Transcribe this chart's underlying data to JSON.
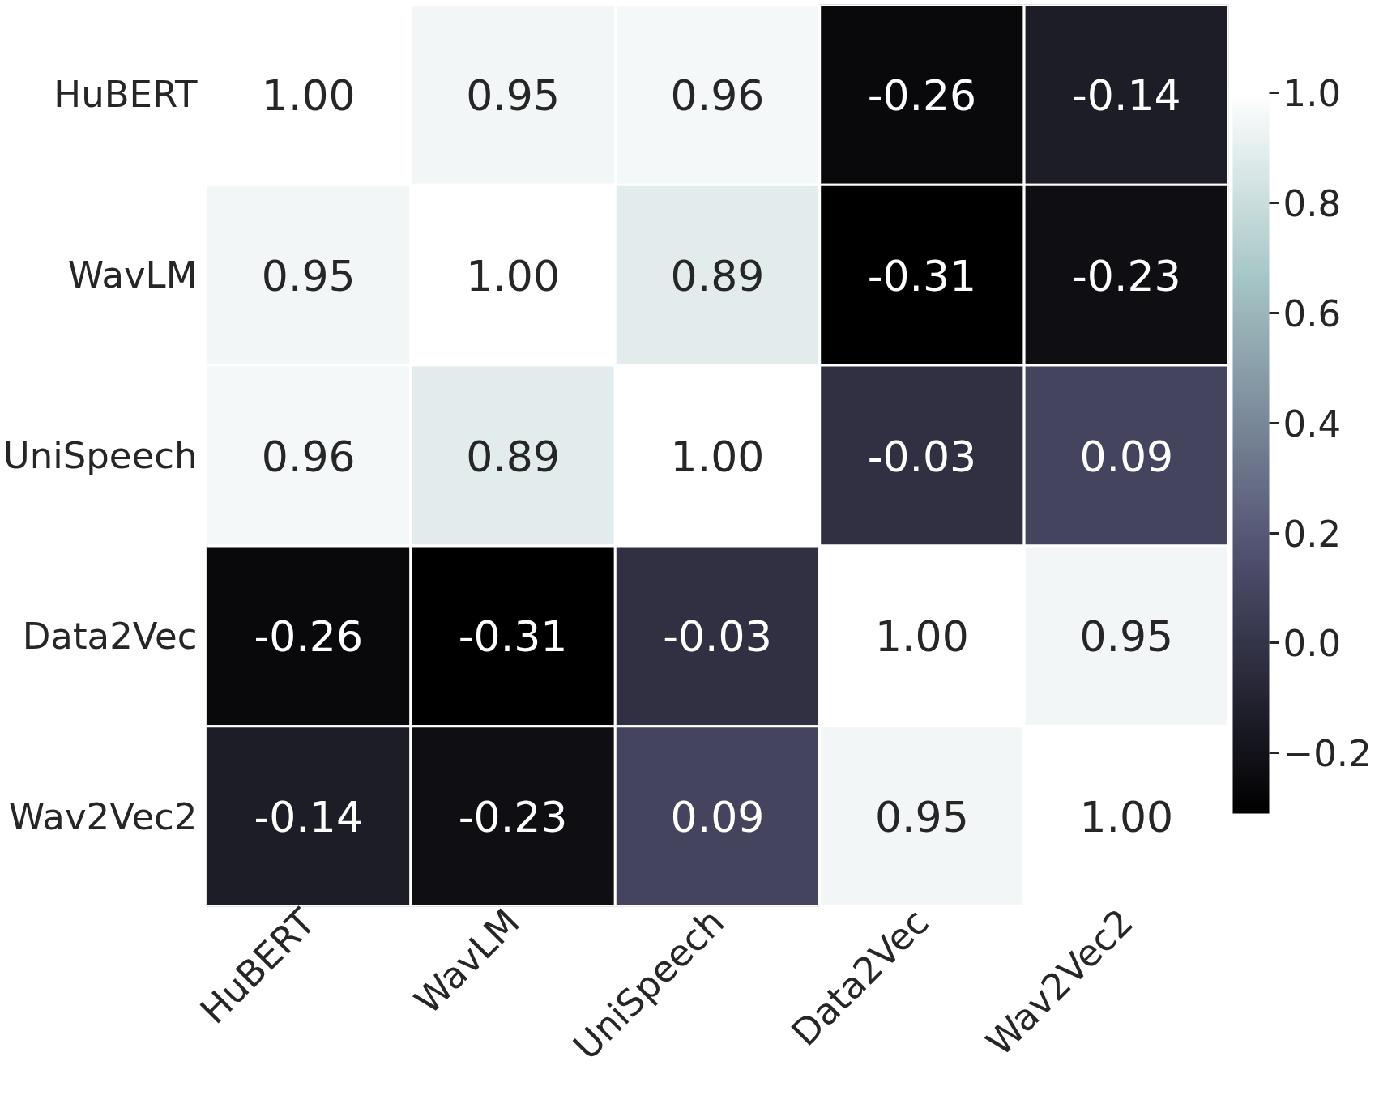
{
  "chart_data": {
    "type": "heatmap",
    "categories": [
      "HuBERT",
      "WavLM",
      "UniSpeech",
      "Data2Vec",
      "Wav2Vec2"
    ],
    "y_categories": [
      "HuBERT",
      "WavLM",
      "UniSpeech",
      "Data2Vec",
      "Wav2Vec2"
    ],
    "cells": [
      [
        1.0,
        0.95,
        0.96,
        -0.26,
        -0.14
      ],
      [
        0.95,
        1.0,
        0.89,
        -0.31,
        -0.23
      ],
      [
        0.96,
        0.89,
        1.0,
        -0.03,
        0.09
      ],
      [
        -0.26,
        -0.31,
        -0.03,
        1.0,
        0.95
      ],
      [
        -0.14,
        -0.23,
        0.09,
        0.95,
        1.0
      ]
    ],
    "cell_labels": [
      [
        "1.00",
        "0.95",
        "0.96",
        "-0.26",
        "-0.14"
      ],
      [
        "0.95",
        "1.00",
        "0.89",
        "-0.31",
        "-0.23"
      ],
      [
        "0.96",
        "0.89",
        "1.00",
        "-0.03",
        "0.09"
      ],
      [
        "-0.26",
        "-0.31",
        "-0.03",
        "1.00",
        "0.95"
      ],
      [
        "-0.14",
        "-0.23",
        "0.09",
        "0.95",
        "1.00"
      ]
    ],
    "clim": [
      -0.31,
      1.0
    ],
    "cticks": [
      {
        "value": -0.2,
        "label": "−0.2"
      },
      {
        "value": 0,
        "label": "0.0"
      },
      0.2,
      0.4,
      0.6,
      0.8,
      {
        "value": 1,
        "label": "1.0"
      }
    ]
  }
}
